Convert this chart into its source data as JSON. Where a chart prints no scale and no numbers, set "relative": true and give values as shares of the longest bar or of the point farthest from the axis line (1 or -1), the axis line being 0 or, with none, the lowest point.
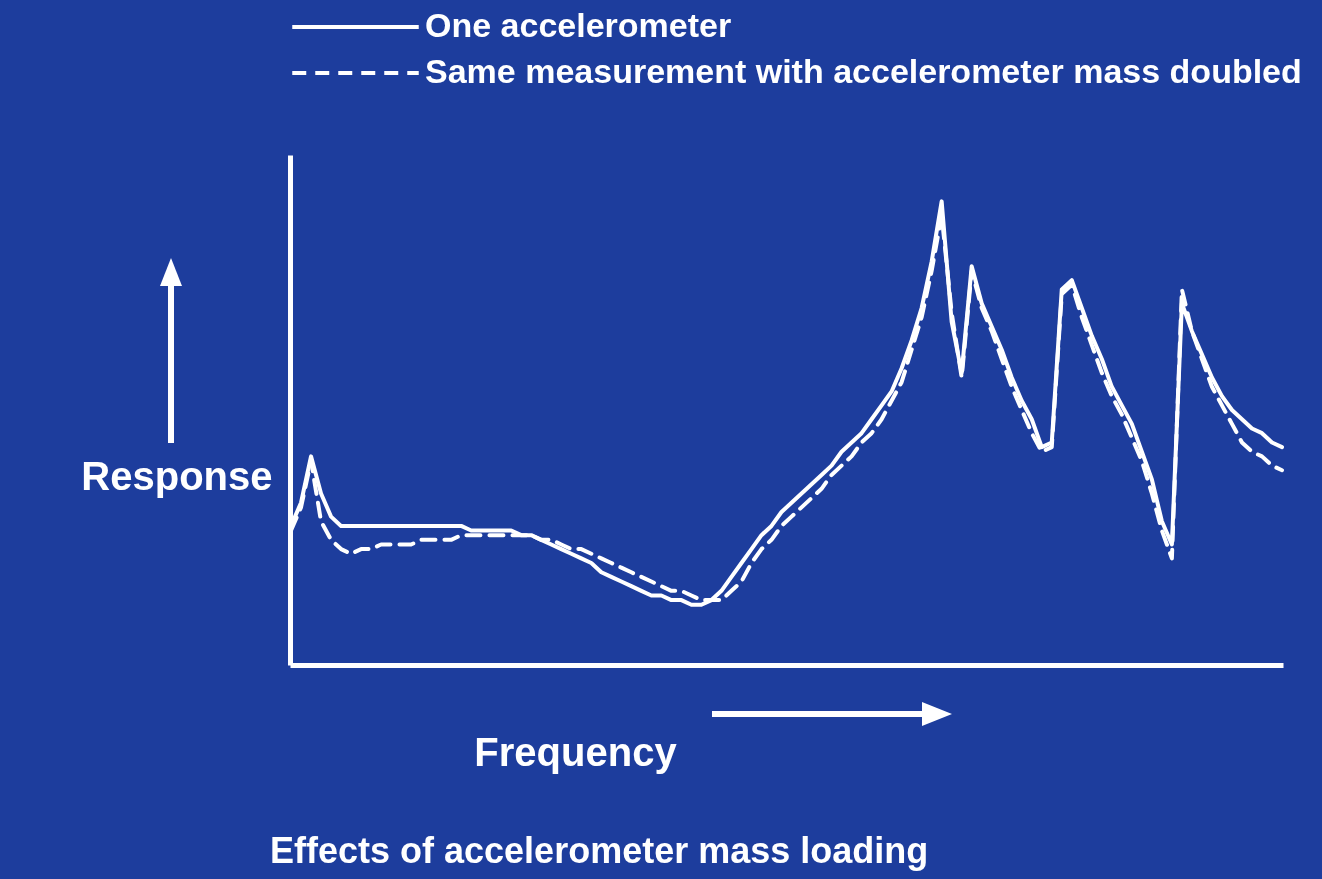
{
  "chart_data": {
    "type": "line",
    "title": "Effects of accelerometer mass loading",
    "xlabel": "Frequency",
    "ylabel": "Response",
    "relative": true,
    "tick_labels": false,
    "grid": false,
    "legend": "top",
    "categories": [
      null,
      null,
      null,
      null,
      null,
      null,
      null,
      null,
      null,
      null,
      null,
      null,
      null,
      null,
      null,
      null,
      null,
      null,
      null,
      null,
      null,
      null,
      null,
      null,
      null,
      null,
      null,
      null,
      null,
      null,
      null,
      null,
      null,
      null,
      null,
      null,
      null,
      null,
      null,
      null,
      null,
      null,
      null,
      null,
      null,
      null,
      null,
      null,
      null,
      null,
      null,
      null,
      null,
      null,
      null,
      null,
      null,
      null,
      null,
      null,
      null,
      null,
      null,
      null,
      null,
      null,
      null,
      null,
      null,
      null,
      null,
      null,
      null,
      null,
      null,
      null,
      null,
      null,
      null,
      null,
      null,
      null,
      null,
      null,
      null,
      null,
      null,
      null,
      null,
      null,
      null,
      null,
      null,
      null,
      null,
      null,
      null,
      null,
      null,
      null
    ],
    "series": [
      {
        "name": "One accelerometer",
        "color": "#ffffff",
        "line_style": "solid",
        "values": [
          0.3,
          0.35,
          0.45,
          0.37,
          0.32,
          0.3,
          0.3,
          0.3,
          0.3,
          0.3,
          0.3,
          0.3,
          0.3,
          0.3,
          0.3,
          0.3,
          0.3,
          0.3,
          0.29,
          0.29,
          0.29,
          0.29,
          0.29,
          0.28,
          0.28,
          0.27,
          0.26,
          0.25,
          0.24,
          0.23,
          0.22,
          0.2,
          0.19,
          0.18,
          0.17,
          0.16,
          0.15,
          0.15,
          0.14,
          0.14,
          0.13,
          0.13,
          0.14,
          0.16,
          0.19,
          0.22,
          0.25,
          0.28,
          0.3,
          0.33,
          0.35,
          0.37,
          0.39,
          0.41,
          0.43,
          0.46,
          0.48,
          0.5,
          0.53,
          0.56,
          0.59,
          0.64,
          0.7,
          0.77,
          0.87,
          1,
          0.74,
          0.63,
          0.86,
          0.78,
          0.73,
          0.68,
          0.62,
          0.57,
          0.53,
          0.47,
          0.48,
          0.81,
          0.83,
          0.77,
          0.71,
          0.66,
          0.6,
          0.56,
          0.52,
          0.46,
          0.4,
          0.31,
          0.26,
          0.78,
          0.72,
          0.67,
          0.62,
          0.58,
          0.55,
          0.53,
          0.51,
          0.5,
          0.48,
          0.47
        ]
      },
      {
        "name": "Same measurement with accelerometer mass doubled",
        "color": "#ffffff",
        "line_style": "dashed",
        "values": [
          0.29,
          0.34,
          0.44,
          0.31,
          0.27,
          0.25,
          0.24,
          0.25,
          0.25,
          0.26,
          0.26,
          0.26,
          0.26,
          0.27,
          0.27,
          0.27,
          0.27,
          0.28,
          0.28,
          0.28,
          0.28,
          0.28,
          0.28,
          0.28,
          0.28,
          0.27,
          0.27,
          0.26,
          0.25,
          0.25,
          0.24,
          0.23,
          0.22,
          0.21,
          0.2,
          0.19,
          0.18,
          0.17,
          0.16,
          0.16,
          0.15,
          0.14,
          0.14,
          0.14,
          0.16,
          0.18,
          0.22,
          0.25,
          0.27,
          0.3,
          0.32,
          0.34,
          0.36,
          0.38,
          0.41,
          0.43,
          0.45,
          0.48,
          0.5,
          0.53,
          0.57,
          0.61,
          0.68,
          0.75,
          0.85,
          0.97,
          0.76,
          0.62,
          0.85,
          0.77,
          0.72,
          0.66,
          0.6,
          0.55,
          0.5,
          0.46,
          0.47,
          0.8,
          0.82,
          0.75,
          0.69,
          0.63,
          0.58,
          0.54,
          0.49,
          0.44,
          0.37,
          0.29,
          0.23,
          0.81,
          0.72,
          0.66,
          0.6,
          0.56,
          0.52,
          0.48,
          0.46,
          0.45,
          0.43,
          0.42
        ]
      }
    ]
  }
}
